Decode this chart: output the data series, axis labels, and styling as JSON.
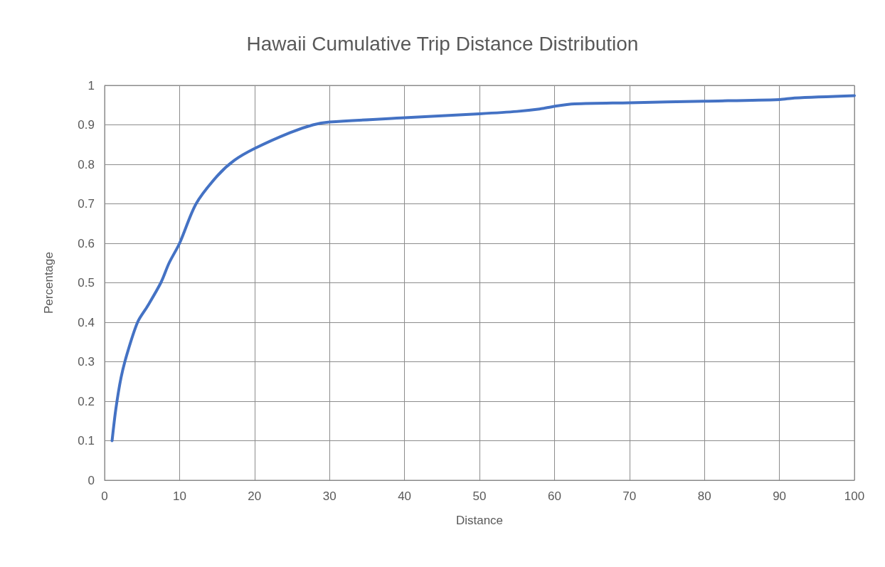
{
  "chart_data": {
    "type": "line",
    "title": "Hawaii Cumulative Trip Distance Distribution",
    "xlabel": "Distance",
    "ylabel": "Percentage",
    "series": [
      {
        "color": "#4472c4",
        "x": [
          1,
          1.5,
          2.2,
          3,
          4.4,
          5.7,
          7.5,
          8.6,
          10,
          12.2,
          15,
          17.3,
          20,
          24.7,
          27.8,
          30,
          40,
          50,
          55,
          58,
          60,
          62.7,
          70,
          80,
          90,
          92,
          100
        ],
        "values": [
          0.1,
          0.18,
          0.26,
          0.32,
          0.4,
          0.44,
          0.5,
          0.55,
          0.6,
          0.7,
          0.77,
          0.81,
          0.84,
          0.88,
          0.9,
          0.907,
          0.918,
          0.928,
          0.934,
          0.94,
          0.947,
          0.953,
          0.956,
          0.96,
          0.964,
          0.968,
          0.974
        ]
      }
    ],
    "xlim": [
      0,
      100
    ],
    "xticks": [
      0,
      10,
      20,
      30,
      40,
      50,
      60,
      70,
      80,
      90,
      100
    ],
    "ylim": [
      0,
      1
    ],
    "yticks": [
      0,
      0.1,
      0.2,
      0.3,
      0.4,
      0.5,
      0.6,
      0.7,
      0.8,
      0.9,
      1
    ],
    "grid": true,
    "marker": "none",
    "line_style": "solid"
  }
}
